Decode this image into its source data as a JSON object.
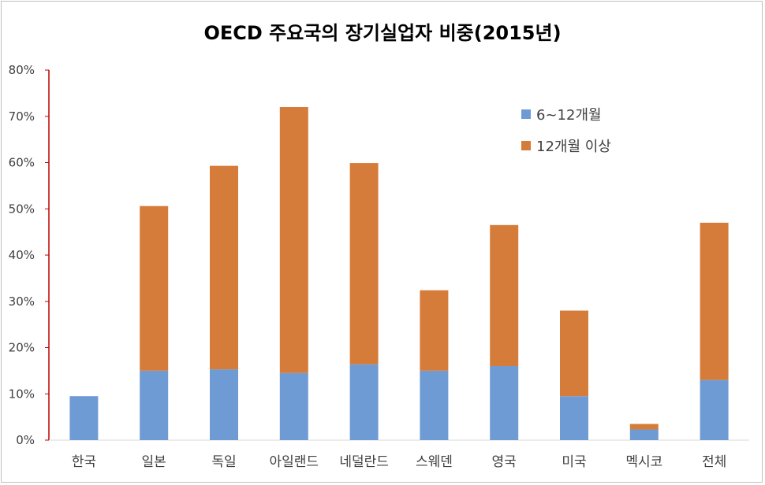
{
  "chart_data": {
    "type": "bar",
    "stacked": true,
    "title": "OECD 주요국의 장기실업자 비중(2015년)",
    "categories": [
      "한국",
      "일본",
      "독일",
      "아일랜드",
      "네덜란드",
      "스웨덴",
      "영국",
      "미국",
      "멕시코",
      "전체"
    ],
    "series": [
      {
        "name": "6~12개월",
        "color": "#6f9bd5",
        "values": [
          9.5,
          15.0,
          15.3,
          14.5,
          16.4,
          15.0,
          16.0,
          9.5,
          2.3,
          13.0
        ]
      },
      {
        "name": "12개월 이상",
        "color": "#d67c3a",
        "values": [
          0.0,
          35.6,
          44.0,
          57.5,
          43.5,
          17.4,
          30.5,
          18.5,
          1.2,
          34.0
        ]
      }
    ],
    "ylim": [
      0,
      80
    ],
    "yticks": [
      "0%",
      "10%",
      "20%",
      "30%",
      "40%",
      "50%",
      "60%",
      "70%",
      "80%"
    ],
    "grid": false,
    "legend_position": "top-right"
  }
}
